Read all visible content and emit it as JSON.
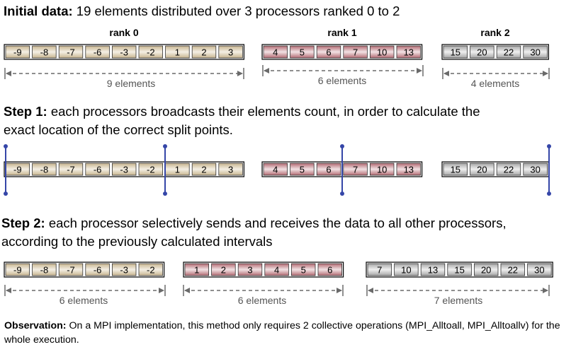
{
  "initial": {
    "heading_bold": "Initial data:",
    "heading_rest": " 19 elements distributed over 3 processors ranked 0 to 2",
    "ranks": [
      {
        "label": "rank 0",
        "values": [
          "-9",
          "-8",
          "-7",
          "-6",
          "-3",
          "-2",
          "1",
          "2",
          "3"
        ],
        "count_label": "9 elements",
        "color": "tan"
      },
      {
        "label": "rank 1",
        "values": [
          "4",
          "5",
          "6",
          "7",
          "10",
          "13"
        ],
        "count_label": "6 elements",
        "color": "red"
      },
      {
        "label": "rank 2",
        "values": [
          "15",
          "20",
          "22",
          "30"
        ],
        "count_label": "4 elements",
        "color": "gray"
      }
    ]
  },
  "step1": {
    "heading_bold": "Step 1:",
    "heading_line1": " each processors broadcasts their elements count, in order to calculate the",
    "heading_line2": "exact location of the correct split points."
  },
  "step2": {
    "heading_bold": "Step 2:",
    "heading_line1": " each processor selectively sends and receives the data to all other processors,",
    "heading_line2": "according to the previously calculated intervals",
    "groups": [
      {
        "values": [
          "-9",
          "-8",
          "-7",
          "-6",
          "-3",
          "-2"
        ],
        "count_label": "6 elements",
        "color": "tan"
      },
      {
        "values": [
          "1",
          "2",
          "3",
          "4",
          "5",
          "6"
        ],
        "count_label": "6 elements",
        "color": "red"
      },
      {
        "values": [
          "7",
          "10",
          "13",
          "15",
          "20",
          "22",
          "30"
        ],
        "count_label": "7 elements",
        "color": "gray"
      }
    ]
  },
  "observation": {
    "bold": "Observation:",
    "text": " On a MPI implementation, this method only requires 2 collective operations (MPI_Alltoall, MPI_Alltoallv) for the whole execution."
  },
  "colors": {
    "tan_edge": "#c8b58f",
    "tan_mid": "#f4efe4",
    "red_edge": "#b36a72",
    "red_mid": "#f2e2e4",
    "gray_edge": "#a6a6a6",
    "gray_mid": "#efefef",
    "split_line": "#3546a8",
    "arrow": "#6a6a6a"
  }
}
